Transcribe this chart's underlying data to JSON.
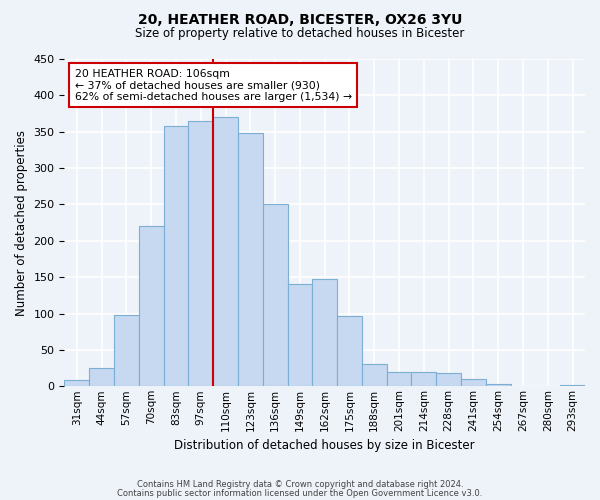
{
  "title1": "20, HEATHER ROAD, BICESTER, OX26 3YU",
  "title2": "Size of property relative to detached houses in Bicester",
  "xlabel": "Distribution of detached houses by size in Bicester",
  "ylabel": "Number of detached properties",
  "bar_labels": [
    "31sqm",
    "44sqm",
    "57sqm",
    "70sqm",
    "83sqm",
    "97sqm",
    "110sqm",
    "123sqm",
    "136sqm",
    "149sqm",
    "162sqm",
    "175sqm",
    "188sqm",
    "201sqm",
    "214sqm",
    "228sqm",
    "241sqm",
    "254sqm",
    "267sqm",
    "280sqm",
    "293sqm"
  ],
  "bar_values": [
    8,
    25,
    98,
    220,
    358,
    365,
    370,
    348,
    250,
    140,
    148,
    97,
    30,
    20,
    20,
    18,
    10,
    3,
    1,
    0,
    2
  ],
  "bar_color": "#c6d9f0",
  "bar_edge_color": "#7bafd4",
  "vline_index": 6,
  "vline_color": "#cc0000",
  "annotation_text_line1": "20 HEATHER ROAD: 106sqm",
  "annotation_text_line2": "← 37% of detached houses are smaller (930)",
  "annotation_text_line3": "62% of semi-detached houses are larger (1,534) →",
  "annotation_box_color": "#ffffff",
  "annotation_border_color": "#cc0000",
  "ylim": [
    0,
    450
  ],
  "yticks": [
    0,
    50,
    100,
    150,
    200,
    250,
    300,
    350,
    400,
    450
  ],
  "footer1": "Contains HM Land Registry data © Crown copyright and database right 2024.",
  "footer2": "Contains public sector information licensed under the Open Government Licence v3.0.",
  "background_color": "#eef2f9",
  "grid_color": "#ffffff"
}
